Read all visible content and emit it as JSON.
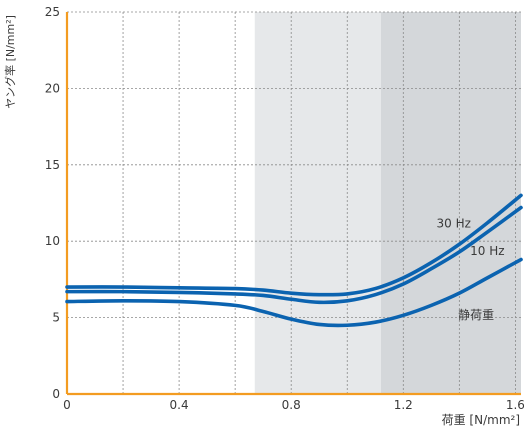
{
  "chart_data": {
    "type": "line",
    "xlabel": "荷重 [N/mm²]",
    "ylabel": "ヤング率 [N/mm²]",
    "xlim": [
      0,
      1.62
    ],
    "ylim": [
      0,
      25
    ],
    "x_ticks": [
      0,
      0.4,
      0.8,
      1.2,
      1.6
    ],
    "x_tick_labels": [
      "0",
      "0.4",
      "0.8",
      "1.2",
      "1.6"
    ],
    "y_ticks": [
      0,
      5,
      10,
      15,
      20,
      25
    ],
    "y_tick_labels": [
      "0",
      "5",
      "10",
      "15",
      "20",
      "25"
    ],
    "grid": true,
    "bands": [
      {
        "from": 0.67,
        "to": 1.12,
        "color": "#e6e8ea"
      },
      {
        "from": 1.12,
        "to": 1.62,
        "color": "#d4d7da"
      }
    ],
    "axis_color": "#f39c21",
    "series": [
      {
        "name": "30 Hz",
        "color": "#0b63b0",
        "x": [
          0,
          0.2,
          0.4,
          0.6,
          0.7,
          0.8,
          0.9,
          1.0,
          1.1,
          1.2,
          1.3,
          1.4,
          1.5,
          1.62
        ],
        "y": [
          7.0,
          7.0,
          6.95,
          6.9,
          6.8,
          6.6,
          6.5,
          6.55,
          6.9,
          7.6,
          8.6,
          9.8,
          11.2,
          13.0
        ]
      },
      {
        "name": "10 Hz",
        "color": "#0b63b0",
        "x": [
          0,
          0.2,
          0.4,
          0.6,
          0.7,
          0.8,
          0.9,
          1.0,
          1.1,
          1.2,
          1.3,
          1.4,
          1.5,
          1.62
        ],
        "y": [
          6.7,
          6.7,
          6.65,
          6.55,
          6.45,
          6.2,
          6.0,
          6.1,
          6.5,
          7.2,
          8.2,
          9.3,
          10.6,
          12.2
        ]
      },
      {
        "name": "静荷重",
        "color": "#0b63b0",
        "x": [
          0,
          0.2,
          0.4,
          0.6,
          0.7,
          0.8,
          0.9,
          1.0,
          1.1,
          1.2,
          1.3,
          1.4,
          1.5,
          1.62
        ],
        "y": [
          6.05,
          6.1,
          6.05,
          5.8,
          5.4,
          4.9,
          4.55,
          4.5,
          4.7,
          5.15,
          5.8,
          6.6,
          7.6,
          8.8
        ]
      }
    ],
    "annotations": [
      {
        "text": "30 Hz",
        "x": 1.38,
        "y": 10.9
      },
      {
        "text": "10 Hz",
        "x": 1.5,
        "y": 9.1
      },
      {
        "text": "静荷重",
        "x": 1.46,
        "y": 4.9
      }
    ]
  }
}
